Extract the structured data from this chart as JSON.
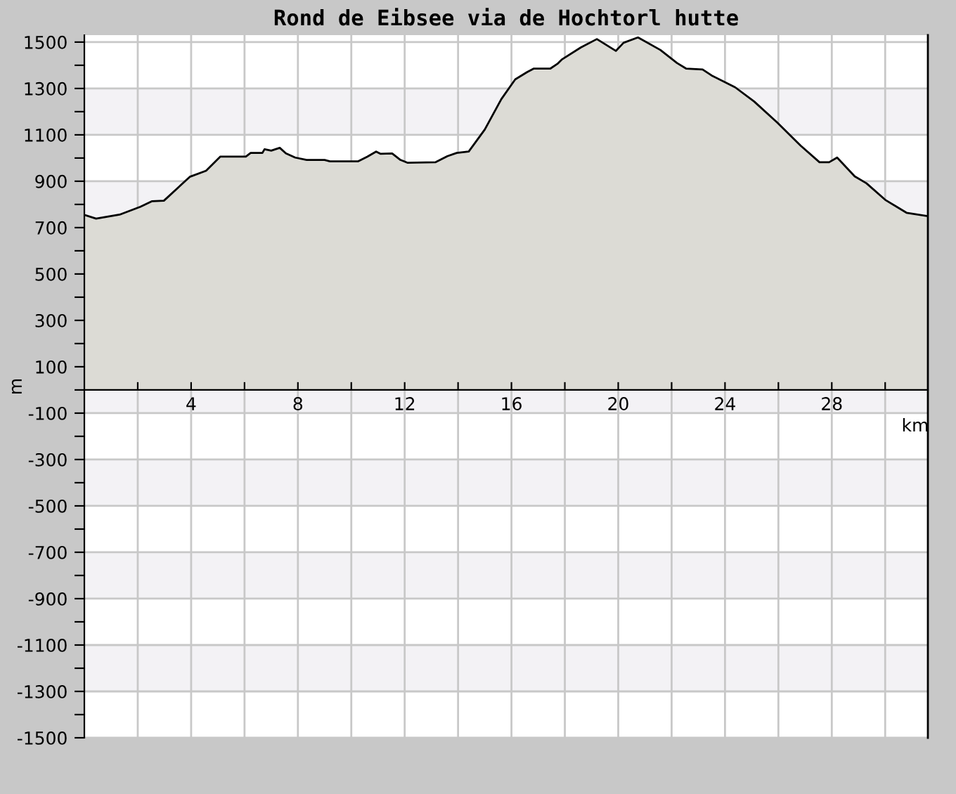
{
  "chart_data": {
    "type": "area",
    "title": "Rond de Eibsee via de Hochtorl hutte",
    "xlabel": "km",
    "ylabel": "m",
    "x": [
      0,
      0.44,
      1.32,
      2.1,
      2.54,
      2.98,
      3.95,
      4.56,
      5.09,
      6.05,
      6.23,
      6.67,
      6.75,
      7.0,
      7.32,
      7.55,
      7.9,
      8.33,
      9.0,
      9.2,
      10.26,
      10.6,
      10.93,
      11.1,
      11.53,
      11.84,
      12.1,
      13.16,
      13.6,
      13.95,
      14.4,
      15.0,
      15.62,
      16.14,
      16.58,
      16.84,
      17.46,
      17.72,
      17.9,
      18.6,
      19.2,
      19.91,
      20.2,
      20.74,
      21.58,
      22.2,
      22.54,
      23.16,
      23.5,
      24.38,
      25.09,
      25.96,
      26.84,
      27.54,
      27.9,
      28.2,
      28.86,
      29.3,
      30.0,
      30.8,
      31.58
    ],
    "series": [
      {
        "color": "#dcdbd5",
        "values": [
          755,
          739,
          756,
          790,
          814,
          816,
          919,
          945,
          1006,
          1006,
          1022,
          1022,
          1038,
          1032,
          1044,
          1020,
          1002,
          992,
          992,
          986,
          986,
          1006,
          1028,
          1018,
          1020,
          992,
          980,
          982,
          1008,
          1022,
          1028,
          1123,
          1254,
          1339,
          1370,
          1386,
          1386,
          1406,
          1426,
          1477,
          1513,
          1462,
          1497,
          1520,
          1466,
          1410,
          1386,
          1382,
          1356,
          1305,
          1244,
          1153,
          1053,
          982,
          982,
          1002,
          921,
          891,
          820,
          764,
          750
        ]
      }
    ],
    "xlim": [
      0,
      31.6
    ],
    "ylim": [
      -1500,
      1530
    ],
    "xticks": [
      {
        "value": 2,
        "label": null
      },
      4,
      {
        "value": 6,
        "label": null
      },
      8,
      {
        "value": 10,
        "label": null
      },
      12,
      {
        "value": 14,
        "label": null
      },
      16,
      {
        "value": 18,
        "label": null
      },
      20,
      {
        "value": 22,
        "label": null
      },
      24,
      {
        "value": 26,
        "label": null
      },
      28,
      {
        "value": 30,
        "label": null
      }
    ],
    "yticks": [
      -1500,
      {
        "value": -1400,
        "label": null
      },
      -1300,
      {
        "value": -1200,
        "label": null
      },
      -1100,
      {
        "value": -1000,
        "label": null
      },
      -900,
      {
        "value": -800,
        "label": null
      },
      -700,
      {
        "value": -600,
        "label": null
      },
      -500,
      {
        "value": -400,
        "label": null
      },
      -300,
      {
        "value": -200,
        "label": null
      },
      -100,
      {
        "value": 0,
        "label": null
      },
      100,
      {
        "value": 200,
        "label": null
      },
      300,
      {
        "value": 400,
        "label": null
      },
      500,
      {
        "value": 600,
        "label": null
      },
      700,
      {
        "value": 800,
        "label": null
      },
      900,
      {
        "value": 1000,
        "label": null
      },
      1100,
      {
        "value": 1200,
        "label": null
      },
      1300,
      {
        "value": 1400,
        "label": null
      },
      1500
    ],
    "bands": [
      {
        "axis": "y",
        "from": -1300,
        "to": -1100,
        "color": "#f3f2f5"
      },
      {
        "axis": "y",
        "from": -900,
        "to": -700,
        "color": "#f3f2f5"
      },
      {
        "axis": "y",
        "from": -500,
        "to": -300,
        "color": "#f3f2f5"
      },
      {
        "axis": "y",
        "from": -100,
        "to": 100,
        "color": "#f3f2f5"
      },
      {
        "axis": "y",
        "from": 700,
        "to": 900,
        "color": "#f3f2f5"
      },
      {
        "axis": "y",
        "from": 1100,
        "to": 1300,
        "color": "#f3f2f5"
      }
    ],
    "grid": true,
    "legend": false
  }
}
